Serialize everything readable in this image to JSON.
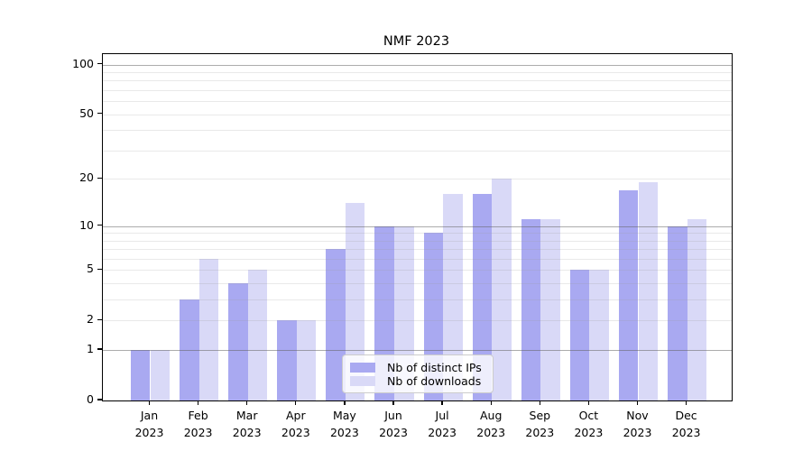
{
  "chart_data": {
    "type": "bar",
    "title": "NMF 2023",
    "xlabel": "",
    "ylabel": "",
    "year_label": "2023",
    "categories": [
      "Jan",
      "Feb",
      "Mar",
      "Apr",
      "May",
      "Jun",
      "Jul",
      "Aug",
      "Sep",
      "Oct",
      "Nov",
      "Dec"
    ],
    "series": [
      {
        "name": "Nb of distinct IPs",
        "color": "#a9a9f1",
        "values": [
          1,
          3,
          4,
          2,
          7,
          10,
          9,
          16,
          11,
          5,
          17,
          10
        ]
      },
      {
        "name": "Nb of downloads",
        "color": "#d9d9f7",
        "values": [
          1,
          6,
          5,
          2,
          14,
          10,
          16,
          20,
          11,
          5,
          19,
          11
        ]
      }
    ],
    "yscale": "log10(1+v)",
    "ylim": [
      0,
      115
    ],
    "yticks": [
      0,
      1,
      2,
      5,
      10,
      20,
      50,
      100
    ],
    "major_gridlines": [
      1,
      10,
      100
    ],
    "minor_gridlines": [
      2,
      3,
      4,
      5,
      6,
      7,
      8,
      9,
      20,
      30,
      40,
      50,
      60,
      70,
      80,
      90
    ],
    "grid": "on",
    "legend_position": "lower center"
  }
}
